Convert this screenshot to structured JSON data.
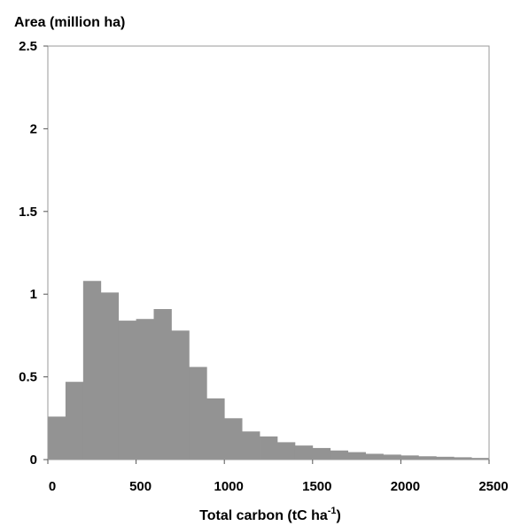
{
  "chart_data": {
    "type": "bar",
    "subtype": "histogram",
    "ylabel": "Area (million ha)",
    "xlabel": "Total carbon (tC ha",
    "xlabel_superscript": "-1",
    "xlabel_suffix": ")",
    "xlim": [
      0,
      2500
    ],
    "ylim": [
      0,
      2.5
    ],
    "bin_width": 100,
    "bin_starts": [
      0,
      100,
      200,
      300,
      400,
      500,
      600,
      700,
      800,
      900,
      1000,
      1100,
      1200,
      1300,
      1400,
      1500,
      1600,
      1700,
      1800,
      1900,
      2000,
      2100,
      2200,
      2300,
      2400
    ],
    "values": [
      0.26,
      0.47,
      1.08,
      1.01,
      0.84,
      0.85,
      0.91,
      0.78,
      0.56,
      0.37,
      0.25,
      0.17,
      0.14,
      0.105,
      0.085,
      0.07,
      0.055,
      0.045,
      0.035,
      0.03,
      0.025,
      0.02,
      0.017,
      0.014,
      0.01
    ],
    "xticks": [
      0,
      500,
      1000,
      1500,
      2000,
      2500
    ],
    "xtick_labels": [
      "0",
      "500",
      "1000",
      "1500",
      "2000",
      "2500"
    ],
    "yticks": [
      0,
      0.5,
      1,
      1.5,
      2,
      2.5
    ],
    "ytick_labels": [
      "0",
      "0.5",
      "1",
      "1.5",
      "2",
      "2.5"
    ],
    "bar_color": "#939393",
    "grid": false,
    "legend": "none"
  }
}
